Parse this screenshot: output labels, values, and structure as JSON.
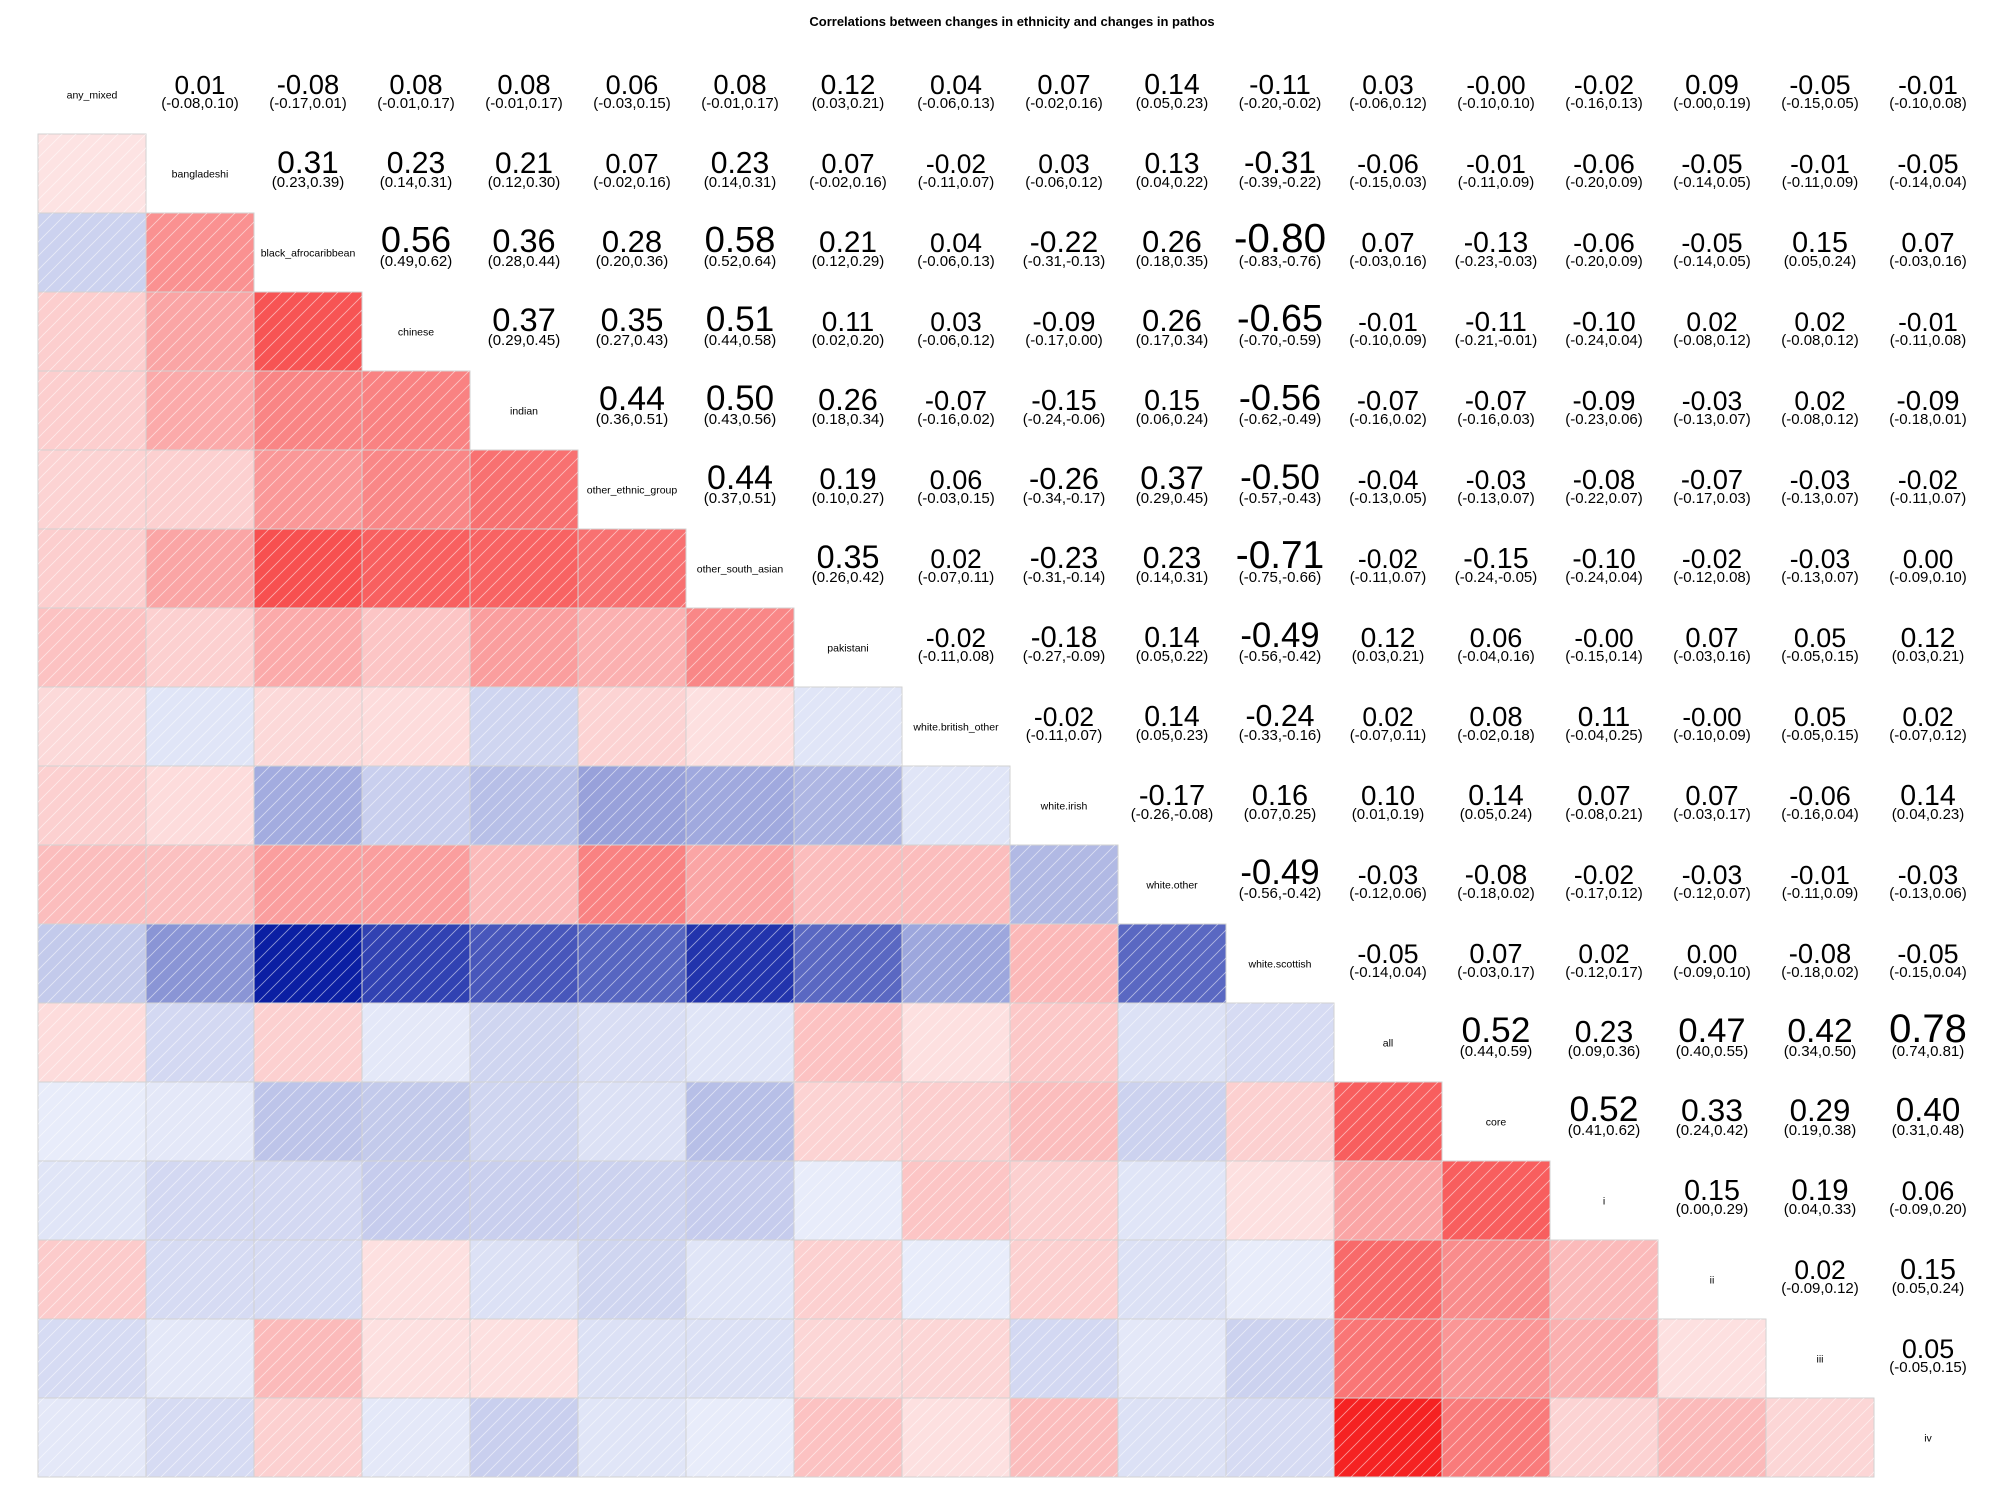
{
  "chart_data": {
    "type": "heatmap",
    "title": "Correlations between changes in ethnicity and changes in pathos",
    "variables": [
      "any_mixed",
      "bangladeshi",
      "black_afrocaribbean",
      "chinese",
      "indian",
      "other_ethnic_group",
      "other_south_asian",
      "pakistani",
      "white.british_other",
      "white.irish",
      "white.other",
      "white.scottish",
      "all",
      "core",
      "i",
      "ii",
      "iii",
      "iv"
    ],
    "value_labels": [
      [
        "",
        "0.01",
        "-0.08",
        "0.08",
        "0.08",
        "0.06",
        "0.08",
        "0.12",
        "0.04",
        "0.07",
        "0.14",
        "-0.11",
        "0.03",
        "-0.00",
        "-0.02",
        "0.09",
        "-0.05",
        "-0.01"
      ],
      [
        "0.01",
        "",
        "0.31",
        "0.23",
        "0.21",
        "0.07",
        "0.23",
        "0.07",
        "-0.02",
        "0.03",
        "0.13",
        "-0.31",
        "-0.06",
        "-0.01",
        "-0.06",
        "-0.05",
        "-0.01",
        "-0.05"
      ],
      [
        "-0.08",
        "0.31",
        "",
        "0.56",
        "0.36",
        "0.28",
        "0.58",
        "0.21",
        "0.04",
        "-0.22",
        "0.26",
        "-0.80",
        "0.07",
        "-0.13",
        "-0.06",
        "-0.05",
        "0.15",
        "0.07"
      ],
      [
        "0.08",
        "0.23",
        "0.56",
        "",
        "0.37",
        "0.35",
        "0.51",
        "0.11",
        "0.03",
        "-0.09",
        "0.26",
        "-0.65",
        "-0.01",
        "-0.11",
        "-0.10",
        "0.02",
        "0.02",
        "-0.01"
      ],
      [
        "0.08",
        "0.21",
        "0.36",
        "0.37",
        "",
        "0.44",
        "0.50",
        "0.26",
        "-0.07",
        "-0.15",
        "0.15",
        "-0.56",
        "-0.07",
        "-0.07",
        "-0.09",
        "-0.03",
        "0.02",
        "-0.09"
      ],
      [
        "0.06",
        "0.07",
        "0.28",
        "0.35",
        "0.44",
        "",
        "0.44",
        "0.19",
        "0.06",
        "-0.26",
        "0.37",
        "-0.50",
        "-0.04",
        "-0.03",
        "-0.08",
        "-0.07",
        "-0.03",
        "-0.02"
      ],
      [
        "0.08",
        "0.23",
        "0.58",
        "0.51",
        "0.50",
        "0.44",
        "",
        "0.35",
        "0.02",
        "-0.23",
        "0.23",
        "-0.71",
        "-0.02",
        "-0.15",
        "-0.10",
        "-0.02",
        "-0.03",
        "0.00"
      ],
      [
        "0.12",
        "0.07",
        "0.21",
        "0.11",
        "0.26",
        "0.19",
        "0.35",
        "",
        "-0.02",
        "-0.18",
        "0.14",
        "-0.49",
        "0.12",
        "0.06",
        "-0.00",
        "0.07",
        "0.05",
        "0.12"
      ],
      [
        "0.04",
        "-0.02",
        "0.04",
        "0.03",
        "-0.07",
        "0.06",
        "0.02",
        "-0.02",
        "",
        "-0.02",
        "0.14",
        "-0.24",
        "0.02",
        "0.08",
        "0.11",
        "-0.00",
        "0.05",
        "0.02"
      ],
      [
        "0.07",
        "0.03",
        "-0.22",
        "-0.09",
        "-0.15",
        "-0.26",
        "-0.23",
        "-0.18",
        "-0.02",
        "",
        "-0.17",
        "0.16",
        "0.10",
        "0.14",
        "0.07",
        "0.07",
        "-0.06",
        "0.14"
      ],
      [
        "0.14",
        "0.13",
        "0.26",
        "0.26",
        "0.15",
        "0.37",
        "0.23",
        "0.14",
        "0.14",
        "-0.17",
        "",
        "-0.49",
        "-0.03",
        "-0.08",
        "-0.02",
        "-0.03",
        "-0.01",
        "-0.03"
      ],
      [
        "-0.11",
        "-0.31",
        "-0.80",
        "-0.65",
        "-0.56",
        "-0.50",
        "-0.71",
        "-0.49",
        "-0.24",
        "0.16",
        "-0.49",
        "",
        "-0.05",
        "0.07",
        "0.02",
        "0.00",
        "-0.08",
        "-0.05"
      ],
      [
        "0.03",
        "-0.06",
        "0.07",
        "-0.01",
        "-0.07",
        "-0.04",
        "-0.02",
        "0.12",
        "0.02",
        "0.10",
        "-0.03",
        "-0.05",
        "",
        "0.52",
        "0.23",
        "0.47",
        "0.42",
        "0.78"
      ],
      [
        "-0.00",
        "-0.01",
        "-0.13",
        "-0.11",
        "-0.07",
        "-0.03",
        "-0.15",
        "0.06",
        "0.08",
        "0.14",
        "-0.08",
        "0.07",
        "0.52",
        "",
        "0.52",
        "0.33",
        "0.29",
        "0.40"
      ],
      [
        "-0.02",
        "-0.06",
        "-0.06",
        "-0.10",
        "-0.09",
        "-0.08",
        "-0.10",
        "-0.00",
        "0.11",
        "0.07",
        "-0.02",
        "0.02",
        "0.23",
        "0.52",
        "",
        "0.15",
        "0.19",
        "0.06"
      ],
      [
        "0.09",
        "-0.05",
        "-0.05",
        "0.02",
        "-0.03",
        "-0.07",
        "-0.02",
        "0.07",
        "-0.00",
        "0.07",
        "-0.03",
        "0.00",
        "0.47",
        "0.33",
        "0.15",
        "",
        "0.02",
        "0.15"
      ],
      [
        "-0.05",
        "-0.01",
        "0.15",
        "0.02",
        "0.02",
        "-0.03",
        "-0.03",
        "0.05",
        "0.05",
        "-0.06",
        "-0.01",
        "-0.08",
        "0.42",
        "0.29",
        "0.19",
        "0.02",
        "",
        "0.05"
      ],
      [
        "-0.01",
        "-0.05",
        "0.07",
        "-0.01",
        "-0.09",
        "-0.02",
        "0.00",
        "0.12",
        "0.02",
        "0.14",
        "-0.03",
        "-0.05",
        "0.78",
        "0.40",
        "0.06",
        "0.15",
        "0.05",
        ""
      ]
    ],
    "ci_upper": [
      [
        "",
        "(-0.08,0.10)",
        "(-0.17,0.01)",
        "(-0.01,0.17)",
        "(-0.01,0.17)",
        "(-0.03,0.15)",
        "(-0.01,0.17)",
        "(0.03,0.21)",
        "(-0.06,0.13)",
        "(-0.02,0.16)",
        "(0.05,0.23)",
        "(-0.20,-0.02)",
        "(-0.06,0.12)",
        "(-0.10,0.10)",
        "(-0.16,0.13)",
        "(-0.00,0.19)",
        "(-0.15,0.05)",
        "(-0.10,0.08)"
      ],
      [
        "",
        "",
        "(0.23,0.39)",
        "(0.14,0.31)",
        "(0.12,0.30)",
        "(-0.02,0.16)",
        "(0.14,0.31)",
        "(-0.02,0.16)",
        "(-0.11,0.07)",
        "(-0.06,0.12)",
        "(0.04,0.22)",
        "(-0.39,-0.22)",
        "(-0.15,0.03)",
        "(-0.11,0.09)",
        "(-0.20,0.09)",
        "(-0.14,0.05)",
        "(-0.11,0.09)",
        "(-0.14,0.04)"
      ],
      [
        "",
        "",
        "",
        "(0.49,0.62)",
        "(0.28,0.44)",
        "(0.20,0.36)",
        "(0.52,0.64)",
        "(0.12,0.29)",
        "(-0.06,0.13)",
        "(-0.31,-0.13)",
        "(0.18,0.35)",
        "(-0.83,-0.76)",
        "(-0.03,0.16)",
        "(-0.23,-0.03)",
        "(-0.20,0.09)",
        "(-0.14,0.05)",
        "(0.05,0.24)",
        "(-0.03,0.16)"
      ],
      [
        "",
        "",
        "",
        "",
        "(0.29,0.45)",
        "(0.27,0.43)",
        "(0.44,0.58)",
        "(0.02,0.20)",
        "(-0.06,0.12)",
        "(-0.17,0.00)",
        "(0.17,0.34)",
        "(-0.70,-0.59)",
        "(-0.10,0.09)",
        "(-0.21,-0.01)",
        "(-0.24,0.04)",
        "(-0.08,0.12)",
        "(-0.08,0.12)",
        "(-0.11,0.08)"
      ],
      [
        "",
        "",
        "",
        "",
        "",
        "(0.36,0.51)",
        "(0.43,0.56)",
        "(0.18,0.34)",
        "(-0.16,0.02)",
        "(-0.24,-0.06)",
        "(0.06,0.24)",
        "(-0.62,-0.49)",
        "(-0.16,0.02)",
        "(-0.16,0.03)",
        "(-0.23,0.06)",
        "(-0.13,0.07)",
        "(-0.08,0.12)",
        "(-0.18,0.01)"
      ],
      [
        "",
        "",
        "",
        "",
        "",
        "",
        "(0.37,0.51)",
        "(0.10,0.27)",
        "(-0.03,0.15)",
        "(-0.34,-0.17)",
        "(0.29,0.45)",
        "(-0.57,-0.43)",
        "(-0.13,0.05)",
        "(-0.13,0.07)",
        "(-0.22,0.07)",
        "(-0.17,0.03)",
        "(-0.13,0.07)",
        "(-0.11,0.07)"
      ],
      [
        "",
        "",
        "",
        "",
        "",
        "",
        "",
        "(0.26,0.42)",
        "(-0.07,0.11)",
        "(-0.31,-0.14)",
        "(0.14,0.31)",
        "(-0.75,-0.66)",
        "(-0.11,0.07)",
        "(-0.24,-0.05)",
        "(-0.24,0.04)",
        "(-0.12,0.08)",
        "(-0.13,0.07)",
        "(-0.09,0.10)"
      ],
      [
        "",
        "",
        "",
        "",
        "",
        "",
        "",
        "",
        "(-0.11,0.08)",
        "(-0.27,-0.09)",
        "(0.05,0.22)",
        "(-0.56,-0.42)",
        "(0.03,0.21)",
        "(-0.04,0.16)",
        "(-0.15,0.14)",
        "(-0.03,0.16)",
        "(-0.05,0.15)",
        "(0.03,0.21)"
      ],
      [
        "",
        "",
        "",
        "",
        "",
        "",
        "",
        "",
        "",
        "(-0.11,0.07)",
        "(0.05,0.23)",
        "(-0.33,-0.16)",
        "(-0.07,0.11)",
        "(-0.02,0.18)",
        "(-0.04,0.25)",
        "(-0.10,0.09)",
        "(-0.05,0.15)",
        "(-0.07,0.12)"
      ],
      [
        "",
        "",
        "",
        "",
        "",
        "",
        "",
        "",
        "",
        "",
        "(-0.26,-0.08)",
        "(0.07,0.25)",
        "(0.01,0.19)",
        "(0.05,0.24)",
        "(-0.08,0.21)",
        "(-0.03,0.17)",
        "(-0.16,0.04)",
        "(0.04,0.23)"
      ],
      [
        "",
        "",
        "",
        "",
        "",
        "",
        "",
        "",
        "",
        "",
        "",
        "(-0.56,-0.42)",
        "(-0.12,0.06)",
        "(-0.18,0.02)",
        "(-0.17,0.12)",
        "(-0.12,0.07)",
        "(-0.11,0.09)",
        "(-0.13,0.06)"
      ],
      [
        "",
        "",
        "",
        "",
        "",
        "",
        "",
        "",
        "",
        "",
        "",
        "",
        "(-0.14,0.04)",
        "(-0.03,0.17)",
        "(-0.12,0.17)",
        "(-0.09,0.10)",
        "(-0.18,0.02)",
        "(-0.15,0.04)"
      ],
      [
        "",
        "",
        "",
        "",
        "",
        "",
        "",
        "",
        "",
        "",
        "",
        "",
        "",
        "(0.44,0.59)",
        "(0.09,0.36)",
        "(0.40,0.55)",
        "(0.34,0.50)",
        "(0.74,0.81)"
      ],
      [
        "",
        "",
        "",
        "",
        "",
        "",
        "",
        "",
        "",
        "",
        "",
        "",
        "",
        "",
        "(0.41,0.62)",
        "(0.24,0.42)",
        "(0.19,0.38)",
        "(0.31,0.48)"
      ],
      [
        "",
        "",
        "",
        "",
        "",
        "",
        "",
        "",
        "",
        "",
        "",
        "",
        "",
        "",
        "",
        "(0.00,0.29)",
        "(0.04,0.33)",
        "(-0.09,0.20)"
      ],
      [
        "",
        "",
        "",
        "",
        "",
        "",
        "",
        "",
        "",
        "",
        "",
        "",
        "",
        "",
        "",
        "",
        "(-0.09,0.12)",
        "(0.05,0.24)"
      ],
      [
        "",
        "",
        "",
        "",
        "",
        "",
        "",
        "",
        "",
        "",
        "",
        "",
        "",
        "",
        "",
        "",
        "",
        "(-0.05,0.15)"
      ],
      [
        "",
        "",
        "",
        "",
        "",
        "",
        "",
        "",
        "",
        "",
        "",
        "",
        "",
        "",
        "",
        "",
        "",
        ""
      ]
    ],
    "color_scale": {
      "negative": "#0b1fa3",
      "zero": "#e8ecfa",
      "positive": "#f51d1d"
    },
    "legend": "none"
  }
}
